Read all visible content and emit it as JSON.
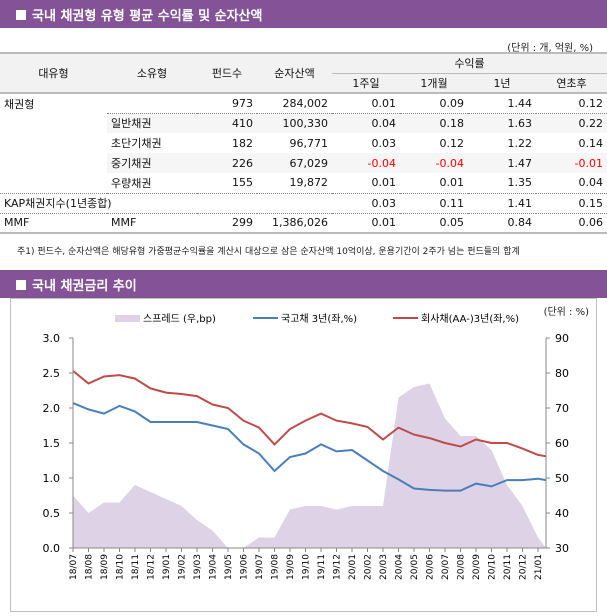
{
  "section1": {
    "title": "국내 채권형 유형 평균 수익률 및 순자산액",
    "unit": "(단위 : 개, 억원, %)",
    "headers": {
      "major": "대유형",
      "minor": "소유형",
      "funds": "펀드수",
      "assets": "순자산액",
      "returns": "수익률",
      "w1": "1주일",
      "m1": "1개월",
      "y1": "1년",
      "ytd": "연초후"
    },
    "rows": [
      {
        "major": "채권형",
        "minor": "",
        "funds": "973",
        "assets": "284,002",
        "w1": "0.01",
        "m1": "0.09",
        "y1": "1.44",
        "ytd": "0.12"
      },
      {
        "major": "",
        "minor": "일반채권",
        "funds": "410",
        "assets": "100,330",
        "w1": "0.04",
        "m1": "0.18",
        "y1": "1.63",
        "ytd": "0.22"
      },
      {
        "major": "",
        "minor": "초단기채권",
        "funds": "182",
        "assets": "96,771",
        "w1": "0.03",
        "m1": "0.12",
        "y1": "1.22",
        "ytd": "0.14"
      },
      {
        "major": "",
        "minor": "중기채권",
        "funds": "226",
        "assets": "67,029",
        "w1": "-0.04",
        "m1": "-0.04",
        "y1": "1.47",
        "ytd": "-0.01"
      },
      {
        "major": "",
        "minor": "우량채권",
        "funds": "155",
        "assets": "19,872",
        "w1": "0.01",
        "m1": "0.01",
        "y1": "1.35",
        "ytd": "0.04"
      },
      {
        "major": "KAP채권지수(1년종합)",
        "minor": "",
        "funds": "",
        "assets": "",
        "w1": "0.03",
        "m1": "0.11",
        "y1": "1.41",
        "ytd": "0.15"
      },
      {
        "major": "MMF",
        "minor": "MMF",
        "funds": "299",
        "assets": "1,386,026",
        "w1": "0.01",
        "m1": "0.05",
        "y1": "0.84",
        "ytd": "0.06"
      }
    ],
    "note": "주1) 펀드수, 순자산액은 해당유형 가중평균수익률을 계산시 대상으로 삼은 순자산액 10억이상, 운용기간이 2주가 넘는 펀드들의 합계",
    "negative_color": "#ff0000"
  },
  "section2": {
    "title": "국내 채권금리 추이",
    "unit": "(단위 : %)"
  },
  "header_color": "#845296",
  "chart_data": {
    "type": "line+area",
    "categories": [
      "18/07",
      "18/08",
      "18/09",
      "18/10",
      "18/11",
      "18/12",
      "19/01",
      "19/02",
      "19/03",
      "19/04",
      "19/05",
      "19/06",
      "19/07",
      "19/08",
      "19/09",
      "19/10",
      "19/11",
      "19/12",
      "20/01",
      "20/02",
      "20/03",
      "20/04",
      "20/05",
      "20/06",
      "20/07",
      "20/08",
      "20/09",
      "20/10",
      "20/11",
      "20/12",
      "21/01"
    ],
    "series": [
      {
        "name": "스프레드 (우,bp)",
        "axis": "right",
        "kind": "area",
        "color": "#ded3e6",
        "values": [
          45,
          40,
          43,
          43,
          48,
          46,
          44,
          42,
          38,
          35,
          30,
          30,
          33,
          33,
          41,
          42,
          42,
          41,
          42,
          42,
          42,
          73,
          76,
          77,
          67,
          62,
          62,
          58,
          48,
          42,
          33
        ]
      },
      {
        "name": "국고채 3년(좌,%)",
        "axis": "left",
        "kind": "line",
        "color": "#4a7ebb",
        "values": [
          2.07,
          1.98,
          1.92,
          2.03,
          1.95,
          1.8,
          1.8,
          1.8,
          1.8,
          1.75,
          1.7,
          1.48,
          1.35,
          1.1,
          1.3,
          1.35,
          1.48,
          1.38,
          1.4,
          1.25,
          1.1,
          0.98,
          0.85,
          0.83,
          0.82,
          0.82,
          0.92,
          0.88,
          0.97,
          0.97,
          0.99
        ]
      },
      {
        "name": "회사채(AA-)3년(좌,%)",
        "axis": "left",
        "kind": "line",
        "color": "#be4b48",
        "values": [
          2.53,
          2.35,
          2.45,
          2.47,
          2.42,
          2.28,
          2.22,
          2.2,
          2.17,
          2.05,
          2.0,
          1.82,
          1.72,
          1.48,
          1.7,
          1.82,
          1.92,
          1.82,
          1.78,
          1.73,
          1.55,
          1.72,
          1.62,
          1.57,
          1.5,
          1.45,
          1.55,
          1.5,
          1.5,
          1.42,
          1.33
        ]
      }
    ],
    "yleft": {
      "ylim": [
        0,
        3
      ],
      "ticks": [
        "0.0",
        "0.5",
        "1.0",
        "1.5",
        "2.0",
        "2.5",
        "3.0"
      ]
    },
    "yright": {
      "ylim": [
        30,
        90
      ],
      "ticks": [
        "30",
        "40",
        "50",
        "60",
        "70",
        "80",
        "90"
      ]
    },
    "legend": "top",
    "grid": false
  }
}
